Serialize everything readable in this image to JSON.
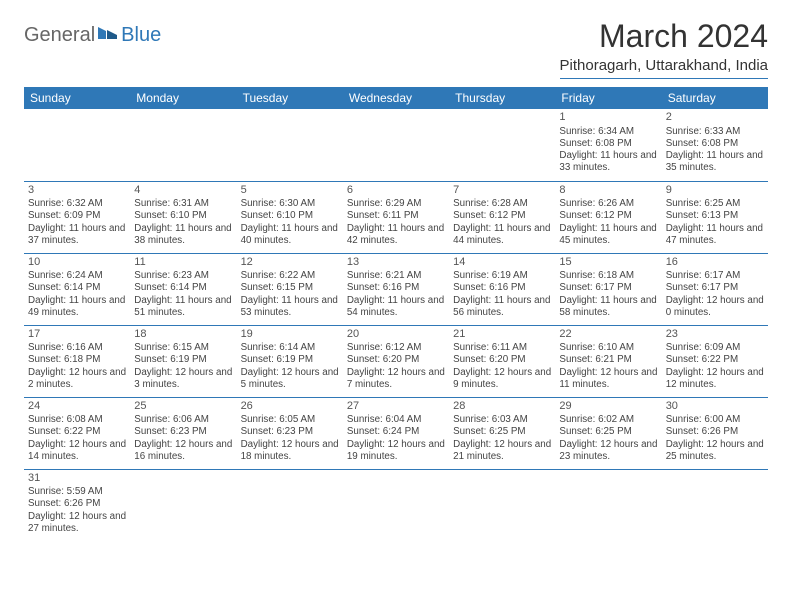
{
  "logo": {
    "general": "General",
    "blue": "Blue"
  },
  "header": {
    "month_title": "March 2024",
    "location": "Pithoragarh, Uttarakhand, India"
  },
  "calendar": {
    "day_labels": [
      "Sunday",
      "Monday",
      "Tuesday",
      "Wednesday",
      "Thursday",
      "Friday",
      "Saturday"
    ],
    "header_bg": "#2f78b7",
    "header_fg": "#ffffff",
    "rule_color": "#2f78b7",
    "weeks": [
      [
        null,
        null,
        null,
        null,
        null,
        {
          "n": "1",
          "sunrise": "Sunrise: 6:34 AM",
          "sunset": "Sunset: 6:08 PM",
          "daylight": "Daylight: 11 hours and 33 minutes."
        },
        {
          "n": "2",
          "sunrise": "Sunrise: 6:33 AM",
          "sunset": "Sunset: 6:08 PM",
          "daylight": "Daylight: 11 hours and 35 minutes."
        }
      ],
      [
        {
          "n": "3",
          "sunrise": "Sunrise: 6:32 AM",
          "sunset": "Sunset: 6:09 PM",
          "daylight": "Daylight: 11 hours and 37 minutes."
        },
        {
          "n": "4",
          "sunrise": "Sunrise: 6:31 AM",
          "sunset": "Sunset: 6:10 PM",
          "daylight": "Daylight: 11 hours and 38 minutes."
        },
        {
          "n": "5",
          "sunrise": "Sunrise: 6:30 AM",
          "sunset": "Sunset: 6:10 PM",
          "daylight": "Daylight: 11 hours and 40 minutes."
        },
        {
          "n": "6",
          "sunrise": "Sunrise: 6:29 AM",
          "sunset": "Sunset: 6:11 PM",
          "daylight": "Daylight: 11 hours and 42 minutes."
        },
        {
          "n": "7",
          "sunrise": "Sunrise: 6:28 AM",
          "sunset": "Sunset: 6:12 PM",
          "daylight": "Daylight: 11 hours and 44 minutes."
        },
        {
          "n": "8",
          "sunrise": "Sunrise: 6:26 AM",
          "sunset": "Sunset: 6:12 PM",
          "daylight": "Daylight: 11 hours and 45 minutes."
        },
        {
          "n": "9",
          "sunrise": "Sunrise: 6:25 AM",
          "sunset": "Sunset: 6:13 PM",
          "daylight": "Daylight: 11 hours and 47 minutes."
        }
      ],
      [
        {
          "n": "10",
          "sunrise": "Sunrise: 6:24 AM",
          "sunset": "Sunset: 6:14 PM",
          "daylight": "Daylight: 11 hours and 49 minutes."
        },
        {
          "n": "11",
          "sunrise": "Sunrise: 6:23 AM",
          "sunset": "Sunset: 6:14 PM",
          "daylight": "Daylight: 11 hours and 51 minutes."
        },
        {
          "n": "12",
          "sunrise": "Sunrise: 6:22 AM",
          "sunset": "Sunset: 6:15 PM",
          "daylight": "Daylight: 11 hours and 53 minutes."
        },
        {
          "n": "13",
          "sunrise": "Sunrise: 6:21 AM",
          "sunset": "Sunset: 6:16 PM",
          "daylight": "Daylight: 11 hours and 54 minutes."
        },
        {
          "n": "14",
          "sunrise": "Sunrise: 6:19 AM",
          "sunset": "Sunset: 6:16 PM",
          "daylight": "Daylight: 11 hours and 56 minutes."
        },
        {
          "n": "15",
          "sunrise": "Sunrise: 6:18 AM",
          "sunset": "Sunset: 6:17 PM",
          "daylight": "Daylight: 11 hours and 58 minutes."
        },
        {
          "n": "16",
          "sunrise": "Sunrise: 6:17 AM",
          "sunset": "Sunset: 6:17 PM",
          "daylight": "Daylight: 12 hours and 0 minutes."
        }
      ],
      [
        {
          "n": "17",
          "sunrise": "Sunrise: 6:16 AM",
          "sunset": "Sunset: 6:18 PM",
          "daylight": "Daylight: 12 hours and 2 minutes."
        },
        {
          "n": "18",
          "sunrise": "Sunrise: 6:15 AM",
          "sunset": "Sunset: 6:19 PM",
          "daylight": "Daylight: 12 hours and 3 minutes."
        },
        {
          "n": "19",
          "sunrise": "Sunrise: 6:14 AM",
          "sunset": "Sunset: 6:19 PM",
          "daylight": "Daylight: 12 hours and 5 minutes."
        },
        {
          "n": "20",
          "sunrise": "Sunrise: 6:12 AM",
          "sunset": "Sunset: 6:20 PM",
          "daylight": "Daylight: 12 hours and 7 minutes."
        },
        {
          "n": "21",
          "sunrise": "Sunrise: 6:11 AM",
          "sunset": "Sunset: 6:20 PM",
          "daylight": "Daylight: 12 hours and 9 minutes."
        },
        {
          "n": "22",
          "sunrise": "Sunrise: 6:10 AM",
          "sunset": "Sunset: 6:21 PM",
          "daylight": "Daylight: 12 hours and 11 minutes."
        },
        {
          "n": "23",
          "sunrise": "Sunrise: 6:09 AM",
          "sunset": "Sunset: 6:22 PM",
          "daylight": "Daylight: 12 hours and 12 minutes."
        }
      ],
      [
        {
          "n": "24",
          "sunrise": "Sunrise: 6:08 AM",
          "sunset": "Sunset: 6:22 PM",
          "daylight": "Daylight: 12 hours and 14 minutes."
        },
        {
          "n": "25",
          "sunrise": "Sunrise: 6:06 AM",
          "sunset": "Sunset: 6:23 PM",
          "daylight": "Daylight: 12 hours and 16 minutes."
        },
        {
          "n": "26",
          "sunrise": "Sunrise: 6:05 AM",
          "sunset": "Sunset: 6:23 PM",
          "daylight": "Daylight: 12 hours and 18 minutes."
        },
        {
          "n": "27",
          "sunrise": "Sunrise: 6:04 AM",
          "sunset": "Sunset: 6:24 PM",
          "daylight": "Daylight: 12 hours and 19 minutes."
        },
        {
          "n": "28",
          "sunrise": "Sunrise: 6:03 AM",
          "sunset": "Sunset: 6:25 PM",
          "daylight": "Daylight: 12 hours and 21 minutes."
        },
        {
          "n": "29",
          "sunrise": "Sunrise: 6:02 AM",
          "sunset": "Sunset: 6:25 PM",
          "daylight": "Daylight: 12 hours and 23 minutes."
        },
        {
          "n": "30",
          "sunrise": "Sunrise: 6:00 AM",
          "sunset": "Sunset: 6:26 PM",
          "daylight": "Daylight: 12 hours and 25 minutes."
        }
      ],
      [
        {
          "n": "31",
          "sunrise": "Sunrise: 5:59 AM",
          "sunset": "Sunset: 6:26 PM",
          "daylight": "Daylight: 12 hours and 27 minutes."
        },
        null,
        null,
        null,
        null,
        null,
        null
      ]
    ]
  }
}
